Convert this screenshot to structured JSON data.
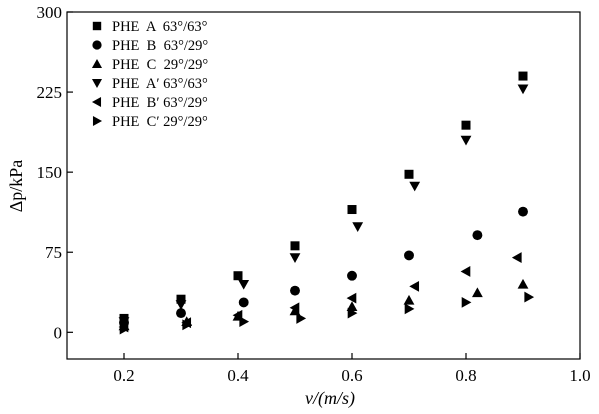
{
  "chart_data": {
    "type": "scatter",
    "xlabel": "v/(m/s)",
    "ylabel": "Δp/kPa",
    "xlim": [
      0.1,
      1.0
    ],
    "ylim": [
      -25,
      300
    ],
    "xticks": [
      0.2,
      0.4,
      0.6,
      0.8,
      1.0
    ],
    "xtick_labels": [
      "0.2",
      "0.4",
      "0.6",
      "0.8",
      "1.0"
    ],
    "yticks": [
      0,
      75,
      150,
      225,
      300
    ],
    "ytick_labels": [
      "0",
      "75",
      "150",
      "225",
      "300"
    ],
    "grid": false,
    "legend_position": "top-left",
    "marker_color": "#000000",
    "series": [
      {
        "name": "PHE  A  63°/63°",
        "marker": "square",
        "x": [
          0.2,
          0.3,
          0.4,
          0.5,
          0.6,
          0.7,
          0.8,
          0.9
        ],
        "y": [
          13,
          31,
          53,
          81,
          115,
          148,
          194,
          240
        ]
      },
      {
        "name": "PHE  B  63°/29°",
        "marker": "circle",
        "x": [
          0.2,
          0.3,
          0.41,
          0.5,
          0.6,
          0.7,
          0.82,
          0.9
        ],
        "y": [
          9,
          18,
          28,
          39,
          53,
          72,
          91,
          113
        ]
      },
      {
        "name": "PHE  C  29°/29°",
        "marker": "triangle-up",
        "x": [
          0.2,
          0.31,
          0.4,
          0.5,
          0.6,
          0.7,
          0.82,
          0.9
        ],
        "y": [
          6,
          10,
          15,
          20,
          24,
          30,
          37,
          45
        ]
      },
      {
        "name": "PHE  A′ 63°/63°",
        "marker": "triangle-down",
        "x": [
          0.2,
          0.3,
          0.41,
          0.5,
          0.61,
          0.71,
          0.8,
          0.9
        ],
        "y": [
          10,
          26,
          45,
          70,
          99,
          137,
          180,
          228
        ]
      },
      {
        "name": "PHE  B′ 63°/29°",
        "marker": "triangle-left",
        "x": [
          0.2,
          0.31,
          0.4,
          0.5,
          0.6,
          0.71,
          0.8,
          0.89
        ],
        "y": [
          5,
          9,
          16,
          23,
          32,
          43,
          57,
          70
        ]
      },
      {
        "name": "PHE  C′ 29°/29°",
        "marker": "triangle-right",
        "x": [
          0.2,
          0.31,
          0.41,
          0.51,
          0.6,
          0.7,
          0.8,
          0.91
        ],
        "y": [
          3,
          7,
          10,
          13,
          18,
          22,
          28,
          33
        ]
      }
    ]
  }
}
